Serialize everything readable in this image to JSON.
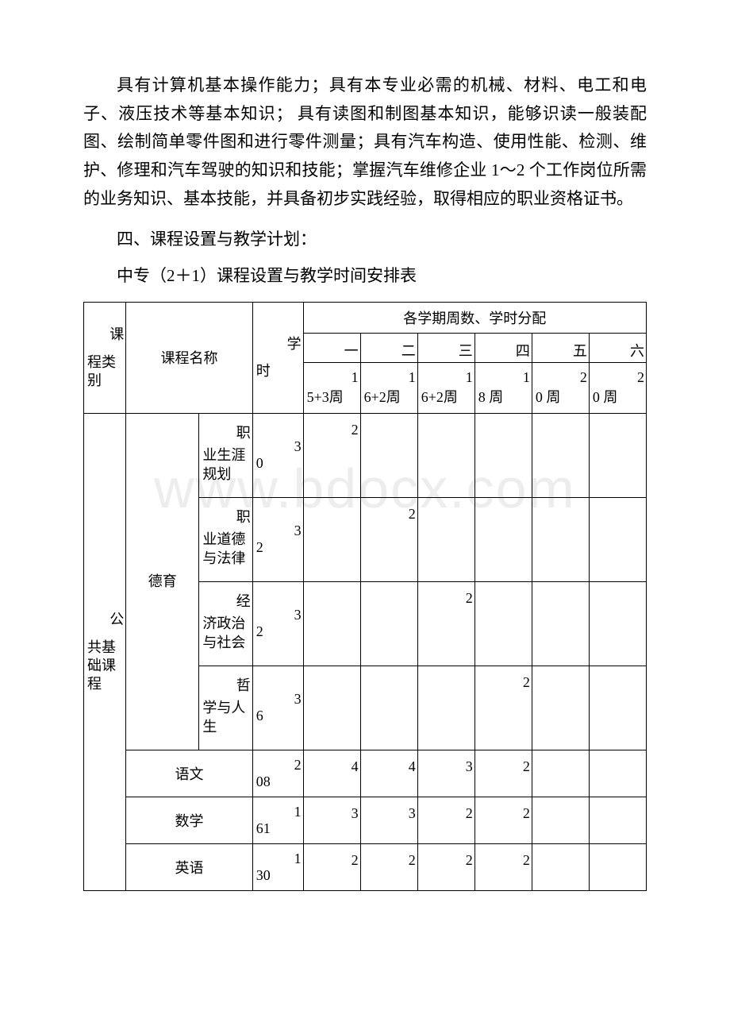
{
  "watermark": "www.bdocx.com",
  "paragraph1": "具有计算机基本操作能力；具有本专业必需的机械、材料、电工和电子、液压技术等基本知识； 具有读图和制图基本知识，能够识读一般装配图、绘制简单零件图和进行零件测量；具有汽车构造、使用性能、检测、维护、修理和汽车驾驶的知识和技能；掌握汽车维修企业 1～2 个工作岗位所需的业务知识、基本技能，并具备初步实践经验，取得相应的职业资格证书。",
  "heading": "四、课程设置与教学计划：",
  "subheading": "中专（2＋1）课程设置与教学时间安排表",
  "table": {
    "header": {
      "col1_top": "课",
      "col1_bot": "程类别",
      "col2": "课程名称",
      "col3_top": "学",
      "col3_bot": "时",
      "merged_header": "各学期周数、学时分配",
      "sems": [
        "一",
        "二",
        "三",
        "四",
        "五",
        "六"
      ],
      "weeks": [
        "15+3周",
        "16+2周",
        "16+2周",
        "18 周",
        "20 周",
        "20 周"
      ],
      "weeks_top": [
        "1",
        "1",
        "1",
        "1",
        "2",
        "2"
      ],
      "weeks_bot": [
        "5+3周",
        "6+2周",
        "6+2周",
        "8 周",
        "0 周",
        "0 周"
      ]
    },
    "category": {
      "top": "公",
      "bot": "共基础课程"
    },
    "moral_group": "德育",
    "sub_courses": [
      {
        "name_top": "职",
        "name_bot": "业生涯规划",
        "hours_top": "3",
        "hours_bot": "0",
        "vals": [
          "2",
          "",
          "",
          "",
          "",
          ""
        ]
      },
      {
        "name_top": "职",
        "name_bot": "业道德与法律",
        "hours_top": "3",
        "hours_bot": "2",
        "vals": [
          "",
          "2",
          "",
          "",
          "",
          ""
        ]
      },
      {
        "name_top": "经",
        "name_bot": "济政治与社会",
        "hours_top": "3",
        "hours_bot": "2",
        "vals": [
          "",
          "",
          "2",
          "",
          "",
          ""
        ]
      },
      {
        "name_top": "哲",
        "name_bot": "学与人生",
        "hours_top": "3",
        "hours_bot": "6",
        "vals": [
          "",
          "",
          "",
          "2",
          "",
          ""
        ]
      }
    ],
    "simple_courses": [
      {
        "name": "语文",
        "hours_top": "2",
        "hours_bot": "08",
        "vals": [
          "4",
          "4",
          "3",
          "2",
          "",
          ""
        ]
      },
      {
        "name": "数学",
        "hours_top": "1",
        "hours_bot": "61",
        "vals": [
          "3",
          "3",
          "2",
          "2",
          "",
          ""
        ]
      },
      {
        "name": "英语",
        "hours_top": "1",
        "hours_bot": "30",
        "vals": [
          "2",
          "2",
          "2",
          "2",
          "",
          ""
        ]
      }
    ]
  },
  "colors": {
    "text": "#000000",
    "background": "#ffffff",
    "border": "#000000",
    "watermark": "#ededed"
  }
}
